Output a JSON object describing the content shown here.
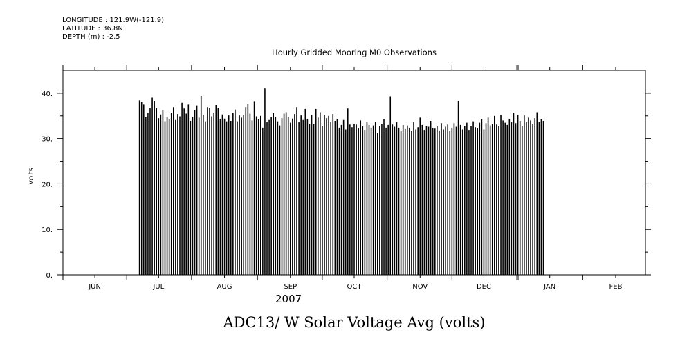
{
  "header": {
    "longitude": "LONGITUDE : 121.9W(-121.9)",
    "latitude": "LATITUDE : 36.8N",
    "depth": "DEPTH (m) : -2.5"
  },
  "chart_data": {
    "type": "bar",
    "title": "Hourly Gridded Mooring M0 Observations",
    "ylabel": "volts",
    "year_label": "2007",
    "footer_title": "ADC13/ W Solar Voltage Avg (volts)",
    "ylim": [
      0,
      45
    ],
    "y_ticks": [
      0,
      10,
      20,
      30,
      40
    ],
    "y_tick_labels": [
      "0.",
      "10.",
      "20.",
      "30.",
      "40."
    ],
    "x_tick_labels": [
      "JUN",
      "JUL",
      "AUG",
      "SEP",
      "OCT",
      "NOV",
      "DEC",
      "JAN",
      "FEB"
    ],
    "x_tick_dates": [
      "2007-06-01",
      "2007-07-01",
      "2007-08-01",
      "2007-09-01",
      "2007-10-01",
      "2007-11-01",
      "2007-12-01",
      "2008-01-01",
      "2008-02-01"
    ],
    "x_range": [
      "2007-05-17",
      "2008-02-15"
    ],
    "start_date": "2007-06-22",
    "daily_peak_volts": [
      38.4,
      38.0,
      37.5,
      34.8,
      35.6,
      36.7,
      39.0,
      38.3,
      36.7,
      34.5,
      35.3,
      36.2,
      33.8,
      34.7,
      34.3,
      35.7,
      36.9,
      34.1,
      35.4,
      34.9,
      37.9,
      36.6,
      35.5,
      37.5,
      33.9,
      34.8,
      36.2,
      37.3,
      34.6,
      39.4,
      35.2,
      33.8,
      36.9,
      36.8,
      34.9,
      35.6,
      37.4,
      36.8,
      34.3,
      35.3,
      34.4,
      33.8,
      35.1,
      33.9,
      35.6,
      36.4,
      33.8,
      35.1,
      34.6,
      35.2,
      36.9,
      37.6,
      35.5,
      34.0,
      38.1,
      34.9,
      34.3,
      35.0,
      32.4,
      41.0,
      33.7,
      34.1,
      34.8,
      35.7,
      34.8,
      33.8,
      32.9,
      34.5,
      35.5,
      35.8,
      34.7,
      33.5,
      34.4,
      35.4,
      36.9,
      33.7,
      35.1,
      34.1,
      36.5,
      34.3,
      33.3,
      35.2,
      33.2,
      36.5,
      34.6,
      35.8,
      32.8,
      35.2,
      34.5,
      35.0,
      33.7,
      35.4,
      33.9,
      34.3,
      32.4,
      33.0,
      34.1,
      32.0,
      36.6,
      33.1,
      32.5,
      33.3,
      33.1,
      32.3,
      34.0,
      32.7,
      31.9,
      33.7,
      33.0,
      32.4,
      32.9,
      33.6,
      31.2,
      32.8,
      33.3,
      34.2,
      32.4,
      33.0,
      39.3,
      33.1,
      32.6,
      33.6,
      32.4,
      31.8,
      33.0,
      32.1,
      32.9,
      32.4,
      31.7,
      33.6,
      32.0,
      32.5,
      34.6,
      33.0,
      31.9,
      32.8,
      32.6,
      33.9,
      32.3,
      32.2,
      32.7,
      31.8,
      33.4,
      32.0,
      32.6,
      33.1,
      31.7,
      32.4,
      33.4,
      32.6,
      38.3,
      33.0,
      32.0,
      32.7,
      33.5,
      31.9,
      32.7,
      33.8,
      32.5,
      32.3,
      33.5,
      34.2,
      32.0,
      33.4,
      34.6,
      32.9,
      33.2,
      35.0,
      33.1,
      32.7,
      35.2,
      34.0,
      33.5,
      33.0,
      34.3,
      33.7,
      35.7,
      33.4,
      35.2,
      33.9,
      32.8,
      35.1,
      33.6,
      34.6,
      34.0,
      33.3,
      34.5,
      35.8,
      33.6,
      34.2,
      33.9
    ]
  }
}
